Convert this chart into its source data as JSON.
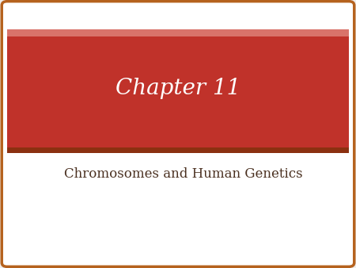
{
  "title": "Chapter 11",
  "subtitle": "Chromosomes and Human Genetics",
  "bg_color": "#f0eeec",
  "card_bg": "#ffffff",
  "card_border_color": "#b5621e",
  "banner_color": "#c0322a",
  "banner_top_color": "#d9736a",
  "banner_bottom_color": "#8b3010",
  "title_color": "#ffffff",
  "subtitle_color": "#4a3020",
  "title_fontsize": 20,
  "subtitle_fontsize": 12,
  "stripe_color": "#e0dedd",
  "num_stripes": 55
}
